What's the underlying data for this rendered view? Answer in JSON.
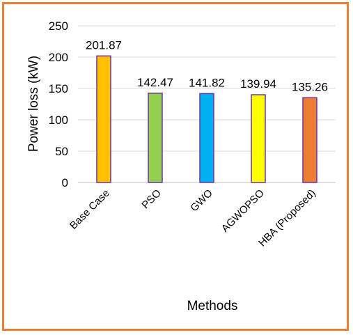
{
  "chart_data": {
    "type": "bar",
    "title": "",
    "xlabel": "Methods",
    "ylabel": "Power loss (kW)",
    "ylim": [
      0,
      250
    ],
    "yticks": [
      0,
      50,
      100,
      150,
      200,
      250
    ],
    "grid": true,
    "legend": "none",
    "categories": [
      "Base Case",
      "PSO",
      "GWO",
      "AGWOPSO",
      "HBA (Proposed)"
    ],
    "values": [
      201.87,
      142.47,
      141.82,
      139.94,
      135.26
    ],
    "data_labels": [
      "201.87",
      "142.47",
      "141.82",
      "139.94",
      "135.26"
    ],
    "bar_colors": [
      "#FFC000",
      "#92D050",
      "#00B0F0",
      "#FFFF00",
      "#ED7D31"
    ],
    "bar_outline_color": "#7030A0",
    "frame_color": "#ED7D31"
  }
}
